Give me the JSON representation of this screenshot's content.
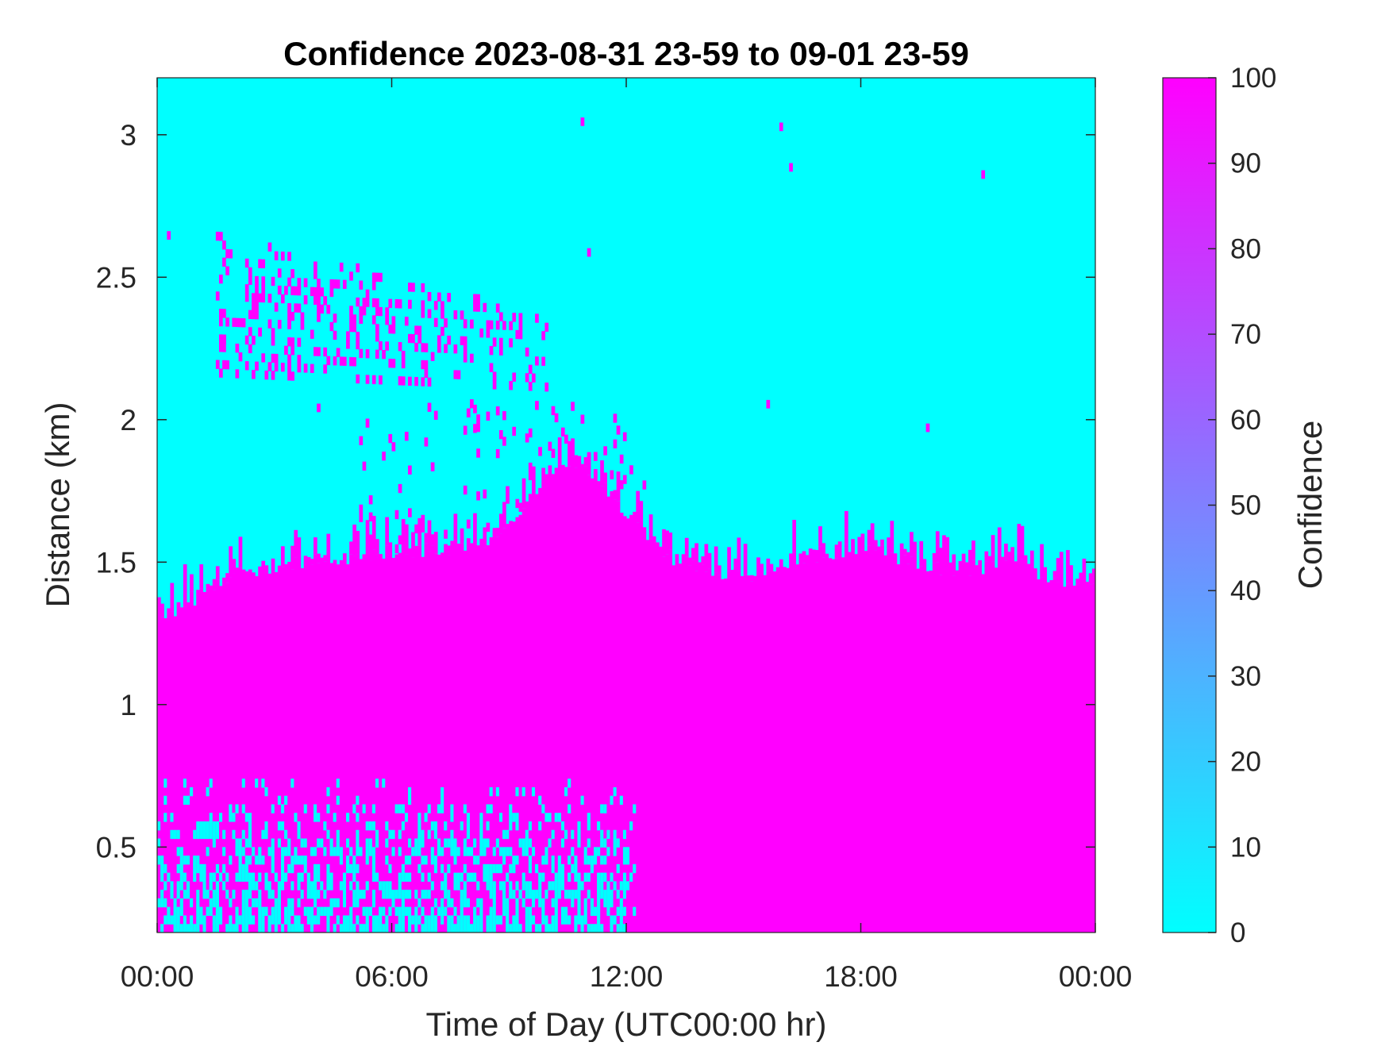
{
  "chart_data": {
    "type": "heatmap",
    "title": "Confidence 2023-08-31 23-59 to 09-01 23-59",
    "xlabel": "Time of Day (UTC00:00 hr)",
    "ylabel": "Distance (km)",
    "x_range_hours": [
      0,
      24
    ],
    "ylim": [
      0.2,
      3.2
    ],
    "x_ticks": [
      {
        "value": 0,
        "label": "00:00"
      },
      {
        "value": 6,
        "label": "06:00"
      },
      {
        "value": 12,
        "label": "12:00"
      },
      {
        "value": 18,
        "label": "18:00"
      },
      {
        "value": 24,
        "label": "00:00"
      }
    ],
    "y_ticks": [
      {
        "value": 0.5,
        "label": "0.5"
      },
      {
        "value": 1,
        "label": "1"
      },
      {
        "value": 1.5,
        "label": "1.5"
      },
      {
        "value": 2,
        "label": "2"
      },
      {
        "value": 2.5,
        "label": "2.5"
      },
      {
        "value": 3,
        "label": "3"
      }
    ],
    "colorbar": {
      "label": "Confidence",
      "range": [
        0,
        100
      ],
      "ticks": [
        0,
        10,
        20,
        30,
        40,
        50,
        60,
        70,
        80,
        90,
        100
      ],
      "tick_labels": [
        "0",
        "10",
        "20",
        "30",
        "40",
        "50",
        "60",
        "70",
        "80",
        "90",
        "100"
      ],
      "color_low": "#00ffff",
      "color_high": "#ff00ff"
    },
    "background_value": 0,
    "layer_value": 100,
    "layer_top_km_by_hour": [
      {
        "hour": 0,
        "top": 1.28
      },
      {
        "hour": 0.5,
        "top": 1.33
      },
      {
        "hour": 1,
        "top": 1.38
      },
      {
        "hour": 1.5,
        "top": 1.42
      },
      {
        "hour": 2,
        "top": 1.45
      },
      {
        "hour": 2.5,
        "top": 1.47
      },
      {
        "hour": 3,
        "top": 1.49
      },
      {
        "hour": 4,
        "top": 1.5
      },
      {
        "hour": 5,
        "top": 1.52
      },
      {
        "hour": 6,
        "top": 1.53
      },
      {
        "hour": 7,
        "top": 1.55
      },
      {
        "hour": 8,
        "top": 1.56
      },
      {
        "hour": 8.5,
        "top": 1.58
      },
      {
        "hour": 9,
        "top": 1.62
      },
      {
        "hour": 9.5,
        "top": 1.72
      },
      {
        "hour": 10,
        "top": 1.83
      },
      {
        "hour": 10.5,
        "top": 1.86
      },
      {
        "hour": 11,
        "top": 1.83
      },
      {
        "hour": 11.5,
        "top": 1.75
      },
      {
        "hour": 12,
        "top": 1.68
      },
      {
        "hour": 12.5,
        "top": 1.6
      },
      {
        "hour": 13,
        "top": 1.53
      },
      {
        "hour": 13.5,
        "top": 1.5
      },
      {
        "hour": 14,
        "top": 1.48
      },
      {
        "hour": 15,
        "top": 1.45
      },
      {
        "hour": 16,
        "top": 1.5
      },
      {
        "hour": 17,
        "top": 1.53
      },
      {
        "hour": 18,
        "top": 1.56
      },
      {
        "hour": 19,
        "top": 1.52
      },
      {
        "hour": 20,
        "top": 1.47
      },
      {
        "hour": 21,
        "top": 1.48
      },
      {
        "hour": 22,
        "top": 1.53
      },
      {
        "hour": 22.5,
        "top": 1.47
      },
      {
        "hour": 23,
        "top": 1.43
      },
      {
        "hour": 24,
        "top": 1.45
      }
    ],
    "lower_mixed_region": {
      "hour_start": 0,
      "hour_end": 12.5,
      "bottom_km": 0.2,
      "top_km": 0.72
    },
    "aloft_scattered_region": {
      "hour_start": 1.5,
      "hour_end": 10,
      "bottom_km": 2.15,
      "top_km": 2.65
    }
  }
}
